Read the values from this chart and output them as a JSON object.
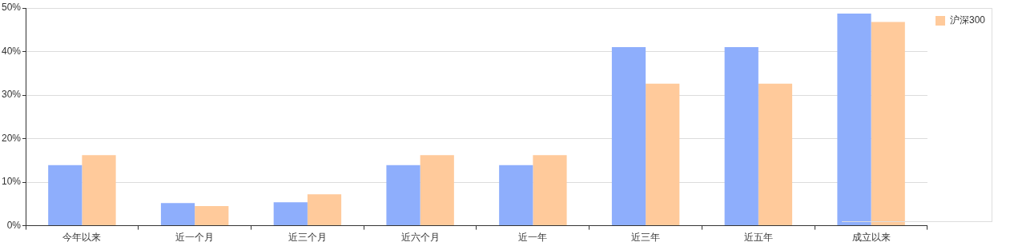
{
  "chart_data": {
    "type": "bar",
    "categories": [
      "今年以来",
      "近一个月",
      "近三个月",
      "近六个月",
      "近一年",
      "近三年",
      "近五年",
      "成立以来"
    ],
    "series": [
      {
        "color": "#8eaefc",
        "values": [
          13.9,
          5.2,
          5.4,
          13.9,
          13.9,
          41.0,
          41.0,
          48.7
        ]
      },
      {
        "name": "沪深300",
        "color": "#ffca9b",
        "values": [
          16.2,
          4.5,
          7.2,
          16.2,
          16.2,
          32.6,
          32.6,
          46.8
        ]
      }
    ],
    "ylim": [
      0,
      50
    ],
    "yticks": [
      {
        "value": 0,
        "label": "0%"
      },
      {
        "value": 10,
        "label": "10%"
      },
      {
        "value": 20,
        "label": "20%"
      },
      {
        "value": 30,
        "label": "30%"
      },
      {
        "value": 40,
        "label": "40%"
      },
      {
        "value": 50,
        "label": "50%"
      }
    ],
    "grid": "y",
    "legend": "right"
  }
}
